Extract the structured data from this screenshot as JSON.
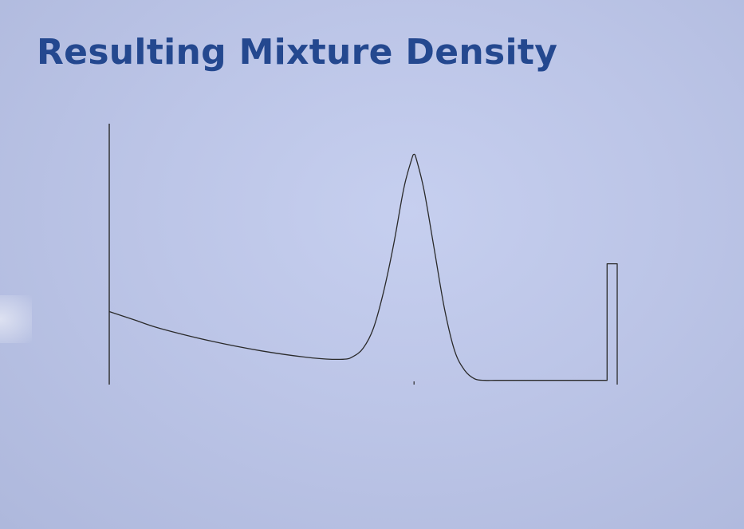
{
  "slide": {
    "title": "Resulting Mixture Density"
  },
  "colors": {
    "title": "#24488f",
    "line": "#2a2a2a"
  },
  "chart_data": {
    "type": "line",
    "title": "Resulting Mixture Density",
    "xlabel": "",
    "ylabel": "",
    "xlim": [
      0,
      1
    ],
    "ylim": [
      0,
      1
    ],
    "grid": false,
    "legend": "none",
    "ticks": [
      0.6
    ],
    "series": [
      {
        "values_x": [
          0.0,
          0.05,
          0.1,
          0.2,
          0.3,
          0.4,
          0.46,
          0.48,
          0.5,
          0.52,
          0.54,
          0.56,
          0.58,
          0.595,
          0.6,
          0.605,
          0.62,
          0.64,
          0.66,
          0.68,
          0.7,
          0.72,
          0.74,
          0.76,
          0.8,
          0.9,
          0.98,
          0.98,
          1.0,
          1.0
        ],
        "values_y": [
          0.26,
          0.23,
          0.2,
          0.155,
          0.12,
          0.095,
          0.09,
          0.1,
          0.13,
          0.2,
          0.33,
          0.5,
          0.7,
          0.8,
          0.82,
          0.8,
          0.69,
          0.48,
          0.27,
          0.12,
          0.05,
          0.02,
          0.015,
          0.015,
          0.015,
          0.015,
          0.015,
          0.43,
          0.43,
          0.0
        ]
      }
    ]
  }
}
